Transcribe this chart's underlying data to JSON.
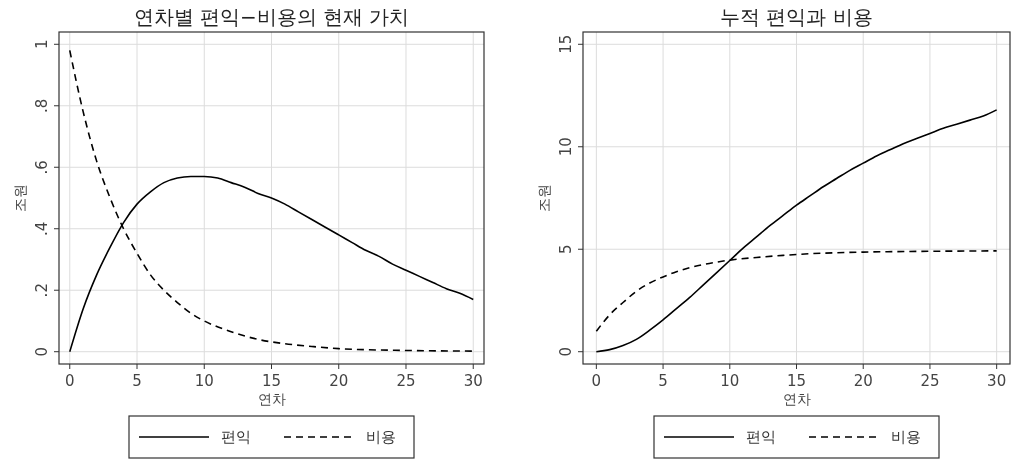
{
  "chart_data": [
    {
      "type": "line",
      "title": "연차별 편익−비용의 현재 가치",
      "xlabel": "연차",
      "ylabel": "조원",
      "xlim": [
        -0.8,
        30.8
      ],
      "ylim": [
        -0.04,
        1.04
      ],
      "xticks": [
        0,
        5,
        10,
        15,
        20,
        25,
        30
      ],
      "yticks": [
        0,
        {
          "value": 0.2,
          "label": ".2"
        },
        {
          "value": 0.4,
          "label": ".4"
        },
        {
          "value": 0.6,
          "label": ".6"
        },
        {
          "value": 0.8,
          "label": ".8"
        },
        1
      ],
      "grid": true,
      "legend": "bottom",
      "marker": "none",
      "series": [
        {
          "name": "편익",
          "color": "#000000",
          "line_style": "solid",
          "x": [
            0,
            1,
            2,
            3,
            4,
            5,
            6,
            7,
            8,
            9,
            10,
            11,
            12,
            13,
            14,
            15,
            16,
            17,
            18,
            19,
            20,
            21,
            22,
            23,
            24,
            25,
            26,
            27,
            28,
            29,
            30
          ],
          "values": [
            0,
            0.14,
            0.25,
            0.34,
            0.42,
            0.48,
            0.52,
            0.55,
            0.565,
            0.57,
            0.57,
            0.565,
            0.55,
            0.535,
            0.515,
            0.5,
            0.48,
            0.455,
            0.43,
            0.405,
            0.38,
            0.355,
            0.33,
            0.31,
            0.285,
            0.265,
            0.245,
            0.225,
            0.205,
            0.19,
            0.17
          ]
        },
        {
          "name": "비용",
          "color": "#000000",
          "line_style": "dashed",
          "x": [
            0,
            1,
            2,
            3,
            4,
            5,
            6,
            7,
            8,
            9,
            10,
            12,
            14,
            16,
            18,
            20,
            25,
            30
          ],
          "values": [
            0.98,
            0.78,
            0.62,
            0.5,
            0.4,
            0.32,
            0.25,
            0.2,
            0.16,
            0.125,
            0.1,
            0.065,
            0.04,
            0.026,
            0.017,
            0.01,
            0.004,
            0.002
          ]
        }
      ]
    },
    {
      "type": "line",
      "title": "누적 편익과 비용",
      "xlabel": "연차",
      "ylabel": "조원",
      "xlim": [
        -1,
        31
      ],
      "ylim": [
        -0.6,
        15.6
      ],
      "xticks": [
        0,
        5,
        10,
        15,
        20,
        25,
        30
      ],
      "yticks": [
        0,
        5,
        10,
        15
      ],
      "grid": true,
      "legend": "bottom",
      "marker": "none",
      "series": [
        {
          "name": "편익",
          "color": "#000000",
          "line_style": "solid",
          "x": [
            0,
            1,
            2,
            3,
            4,
            5,
            6,
            7,
            8,
            9,
            10,
            11,
            12,
            13,
            14,
            15,
            16,
            17,
            18,
            19,
            20,
            21,
            22,
            23,
            24,
            25,
            26,
            27,
            28,
            29,
            30
          ],
          "values": [
            0,
            0.1,
            0.3,
            0.6,
            1.05,
            1.55,
            2.1,
            2.65,
            3.25,
            3.85,
            4.45,
            5.05,
            5.6,
            6.15,
            6.65,
            7.15,
            7.6,
            8.05,
            8.45,
            8.85,
            9.2,
            9.55,
            9.85,
            10.15,
            10.4,
            10.65,
            10.9,
            11.1,
            11.3,
            11.5,
            11.8
          ]
        },
        {
          "name": "비용",
          "color": "#000000",
          "line_style": "dashed",
          "x": [
            0,
            1,
            2,
            3,
            4,
            5,
            6,
            7,
            8,
            9,
            10,
            12,
            14,
            16,
            18,
            20,
            25,
            30
          ],
          "values": [
            1.0,
            1.8,
            2.4,
            2.95,
            3.35,
            3.65,
            3.9,
            4.1,
            4.25,
            4.37,
            4.47,
            4.6,
            4.7,
            4.78,
            4.83,
            4.86,
            4.9,
            4.92
          ]
        }
      ]
    }
  ]
}
